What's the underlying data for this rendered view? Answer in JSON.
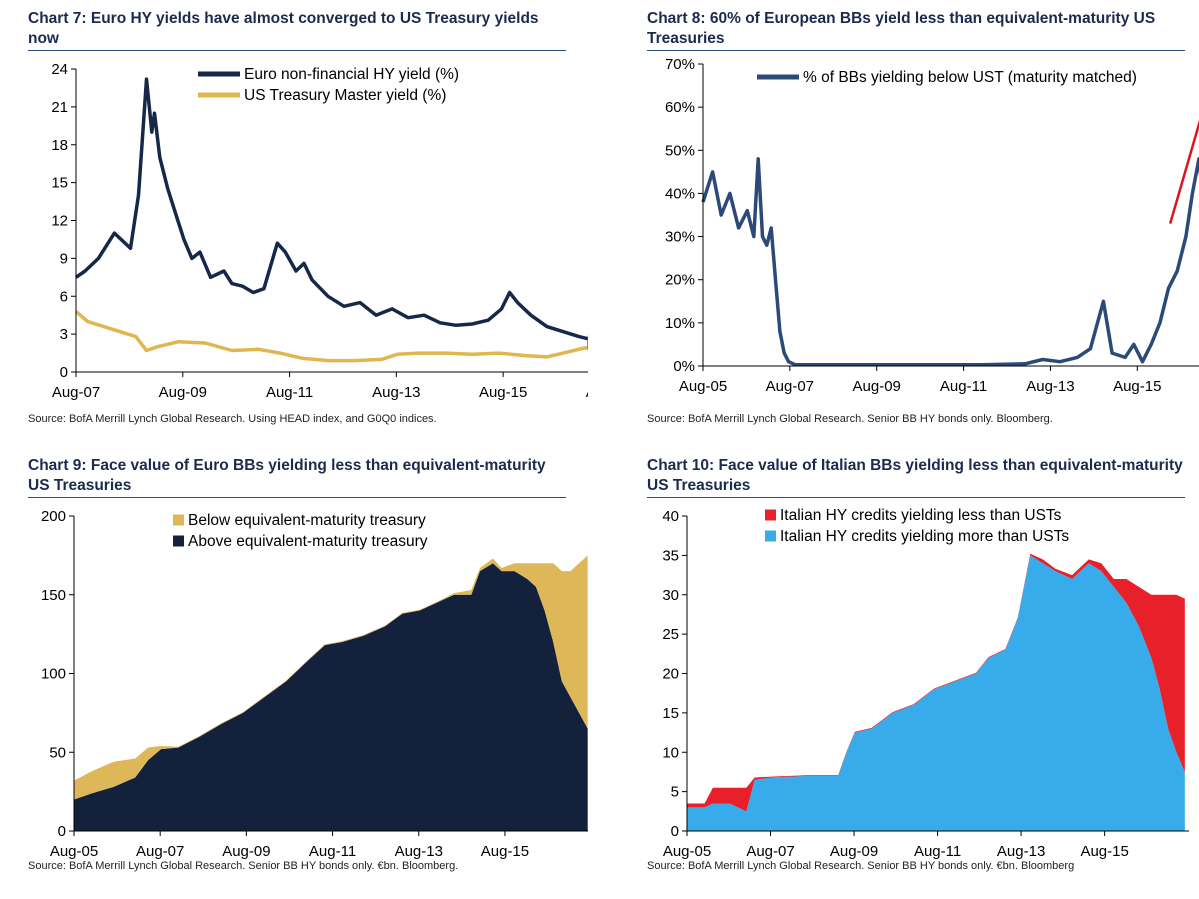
{
  "chart_data": [
    {
      "id": "chart7",
      "type": "line",
      "title": "Chart 7: Euro HY yields have almost converged to US Treasury yields now",
      "source": "Source: BofA Merrill Lynch Global Research. Using HEAD index, and G0Q0 indices.",
      "ylim": [
        0,
        24
      ],
      "yticks": [
        0,
        3,
        6,
        9,
        12,
        15,
        18,
        21,
        24
      ],
      "ytick_labels": [
        "0",
        "3",
        "6",
        "9",
        "12",
        "15",
        "18",
        "21",
        "24"
      ],
      "xlim": [
        2007.58,
        2017.6
      ],
      "xticks": [
        2007.58,
        2009.58,
        2011.58,
        2013.58,
        2015.58,
        2017.58
      ],
      "xtick_labels": [
        "Aug-07",
        "Aug-09",
        "Aug-11",
        "Aug-13",
        "Aug-15",
        "Aug-17"
      ],
      "legend_position": "top",
      "annotation": "red circle around latest values",
      "series": [
        {
          "name": "Euro non-financial HY yield (%)",
          "color": "#16284a",
          "style": "line",
          "x": [
            2007.58,
            2007.75,
            2008.0,
            2008.3,
            2008.6,
            2008.75,
            2008.9,
            2009.0,
            2009.05,
            2009.15,
            2009.3,
            2009.45,
            2009.6,
            2009.75,
            2009.9,
            2010.1,
            2010.35,
            2010.5,
            2010.7,
            2010.9,
            2011.1,
            2011.35,
            2011.5,
            2011.7,
            2011.85,
            2012.0,
            2012.3,
            2012.6,
            2012.9,
            2013.2,
            2013.5,
            2013.8,
            2014.1,
            2014.4,
            2014.7,
            2015.0,
            2015.3,
            2015.55,
            2015.7,
            2015.85,
            2016.1,
            2016.4,
            2016.7,
            2017.0,
            2017.3,
            2017.45
          ],
          "y": [
            7.5,
            8.0,
            9.0,
            11.0,
            9.8,
            14.0,
            23.2,
            19.0,
            20.5,
            17.0,
            14.5,
            12.5,
            10.5,
            9.0,
            9.5,
            7.5,
            8.0,
            7.0,
            6.8,
            6.3,
            6.6,
            10.2,
            9.5,
            8.0,
            8.6,
            7.3,
            6.0,
            5.2,
            5.5,
            4.5,
            5.0,
            4.3,
            4.5,
            3.9,
            3.7,
            3.8,
            4.1,
            5.0,
            6.3,
            5.5,
            4.5,
            3.6,
            3.2,
            2.8,
            2.5,
            2.3
          ]
        },
        {
          "name": "US Treasury Master yield (%)",
          "color": "#e0b64f",
          "style": "line",
          "x": [
            2007.58,
            2007.8,
            2008.1,
            2008.4,
            2008.7,
            2008.9,
            2009.1,
            2009.5,
            2010.0,
            2010.5,
            2011.0,
            2011.4,
            2011.8,
            2012.3,
            2012.8,
            2013.3,
            2013.6,
            2014.0,
            2014.5,
            2015.0,
            2015.5,
            2016.0,
            2016.4,
            2016.8,
            2017.1,
            2017.45
          ],
          "y": [
            4.8,
            4.0,
            3.6,
            3.2,
            2.8,
            1.7,
            2.0,
            2.4,
            2.3,
            1.7,
            1.8,
            1.5,
            1.1,
            0.9,
            0.9,
            1.0,
            1.4,
            1.5,
            1.5,
            1.4,
            1.5,
            1.3,
            1.2,
            1.6,
            1.9,
            2.0
          ]
        }
      ]
    },
    {
      "id": "chart8",
      "type": "line",
      "title": "Chart 8: 60% of European BBs yield less than equivalent-maturity US Treasuries",
      "source": "Source: BofA Merrill Lynch Global Research. Senior BB HY bonds only. Bloomberg.",
      "ylim": [
        0,
        70
      ],
      "yticks": [
        0,
        10,
        20,
        30,
        40,
        50,
        60,
        70
      ],
      "ytick_labels": [
        "0%",
        "10%",
        "20%",
        "30%",
        "40%",
        "50%",
        "60%",
        "70%"
      ],
      "xlim": [
        2005.58,
        2017.6
      ],
      "xticks": [
        2005.58,
        2007.58,
        2009.58,
        2011.58,
        2013.58,
        2015.58
      ],
      "xtick_labels": [
        "Aug-05",
        "Aug-07",
        "Aug-09",
        "Aug-11",
        "Aug-13",
        "Aug-15"
      ],
      "legend_position": "top-right",
      "annotation": "red arrow pointing up",
      "series": [
        {
          "name": "% of BBs yielding below UST (maturity matched)",
          "color": "#2c4a78",
          "style": "line",
          "x": [
            2005.58,
            2005.8,
            2006.0,
            2006.2,
            2006.4,
            2006.6,
            2006.75,
            2006.85,
            2006.95,
            2007.05,
            2007.15,
            2007.25,
            2007.35,
            2007.45,
            2007.55,
            2007.7,
            2008.0,
            2009.0,
            2010.0,
            2011.0,
            2012.0,
            2013.0,
            2013.4,
            2013.8,
            2014.2,
            2014.5,
            2014.8,
            2015.0,
            2015.3,
            2015.5,
            2015.7,
            2015.9,
            2016.1,
            2016.3,
            2016.5,
            2016.7,
            2016.85,
            2017.0,
            2017.1,
            2017.2,
            2017.3,
            2017.4,
            2017.5
          ],
          "y": [
            38,
            45,
            35,
            40,
            32,
            36,
            30,
            48,
            30,
            28,
            32,
            20,
            8,
            3,
            1,
            0.3,
            0.3,
            0.3,
            0.3,
            0.3,
            0.3,
            0.5,
            1.5,
            1,
            2,
            4,
            15,
            3,
            2,
            5,
            1,
            5,
            10,
            18,
            22,
            30,
            40,
            48,
            38,
            52,
            45,
            55,
            62
          ]
        }
      ]
    },
    {
      "id": "chart9",
      "type": "area",
      "stacked": true,
      "title": "Chart 9: Face value of Euro BBs yielding less than equivalent-maturity US Treasuries",
      "source": "Source: BofA Merrill Lynch Global Research. Senior BB HY bonds only. €bn. Bloomberg.",
      "ylim": [
        0,
        200
      ],
      "yticks": [
        0,
        50,
        100,
        150,
        200
      ],
      "ytick_labels": [
        "0",
        "50",
        "100",
        "150",
        "200"
      ],
      "xlim": [
        2005.58,
        2017.6
      ],
      "xticks": [
        2005.58,
        2007.58,
        2009.58,
        2011.58,
        2013.58,
        2015.58
      ],
      "xtick_labels": [
        "Aug-05",
        "Aug-07",
        "Aug-09",
        "Aug-11",
        "Aug-13",
        "Aug-15"
      ],
      "legend_position": "top",
      "x": [
        2005.58,
        2006.0,
        2006.5,
        2007.0,
        2007.3,
        2007.6,
        2008.0,
        2008.5,
        2009.0,
        2009.5,
        2010.0,
        2010.5,
        2011.0,
        2011.4,
        2011.8,
        2012.3,
        2012.8,
        2013.2,
        2013.6,
        2014.0,
        2014.4,
        2014.8,
        2015.0,
        2015.3,
        2015.5,
        2015.8,
        2016.1,
        2016.3,
        2016.5,
        2016.7,
        2016.9,
        2017.1,
        2017.3,
        2017.5
      ],
      "series": [
        {
          "name": "Below equivalent-maturity treasury",
          "color": "#ddb758",
          "values": [
            12,
            14,
            16,
            12,
            8,
            2,
            0.5,
            0.5,
            0.5,
            0.5,
            0.5,
            0.5,
            0.5,
            0.5,
            0.5,
            0.5,
            0.5,
            0.5,
            0.5,
            0.5,
            1,
            3,
            2,
            3,
            2,
            5,
            10,
            15,
            30,
            50,
            70,
            80,
            95,
            110
          ]
        },
        {
          "name": "Above equivalent-maturity treasury",
          "color": "#13213d",
          "values": [
            20,
            24,
            28,
            34,
            45,
            52,
            53,
            60,
            68,
            75,
            85,
            95,
            108,
            118,
            120,
            124,
            130,
            138,
            140,
            145,
            150,
            150,
            165,
            170,
            165,
            165,
            160,
            155,
            140,
            120,
            95,
            85,
            75,
            65
          ]
        }
      ]
    },
    {
      "id": "chart10",
      "type": "area",
      "stacked": true,
      "title": "Chart 10: Face value of Italian BBs yielding less than equivalent-maturity US Treasuries",
      "source": "Source: BofA Merrill Lynch Global Research. Senior BB HY bonds only. €bn. Bloomberg",
      "ylim": [
        0,
        40
      ],
      "yticks": [
        0,
        5,
        10,
        15,
        20,
        25,
        30,
        35,
        40
      ],
      "ytick_labels": [
        "0",
        "5",
        "10",
        "15",
        "20",
        "25",
        "30",
        "35",
        "40"
      ],
      "xlim": [
        2005.58,
        2017.6
      ],
      "xticks": [
        2005.58,
        2007.58,
        2009.58,
        2011.58,
        2013.58,
        2015.58
      ],
      "xtick_labels": [
        "Aug-05",
        "Aug-07",
        "Aug-09",
        "Aug-11",
        "Aug-13",
        "Aug-15"
      ],
      "legend_position": "top",
      "x": [
        2005.58,
        2006.0,
        2006.2,
        2006.6,
        2007.0,
        2007.2,
        2007.6,
        2008.5,
        2009.2,
        2009.4,
        2009.6,
        2010.0,
        2010.5,
        2011.0,
        2011.5,
        2012.0,
        2012.5,
        2012.8,
        2013.2,
        2013.5,
        2013.8,
        2014.1,
        2014.4,
        2014.8,
        2015.2,
        2015.5,
        2015.8,
        2016.1,
        2016.4,
        2016.7,
        2016.9,
        2017.1,
        2017.3,
        2017.5
      ],
      "series": [
        {
          "name": "Italian HY credits yielding less than USTs",
          "color": "#e8202a",
          "values": [
            0.5,
            0.5,
            2,
            2,
            3,
            0.3,
            0.1,
            0.1,
            0.1,
            0.1,
            0.1,
            0.1,
            0.1,
            0.1,
            0.1,
            0.1,
            0.1,
            0.1,
            0.1,
            0.1,
            0.2,
            0.5,
            0.3,
            0.5,
            0.5,
            1,
            1,
            3,
            5,
            8,
            12,
            17,
            20,
            22
          ]
        },
        {
          "name": "Italian HY credits yielding more than USTs",
          "color": "#38acea",
          "values": [
            3,
            3,
            3.5,
            3.5,
            2.5,
            6.5,
            6.8,
            7,
            7,
            10,
            12.5,
            13,
            15,
            16,
            18,
            19,
            20,
            22,
            23,
            27,
            35,
            34,
            33,
            32,
            34,
            33,
            31,
            29,
            26,
            22,
            18,
            13,
            10,
            7.5
          ]
        }
      ]
    }
  ]
}
